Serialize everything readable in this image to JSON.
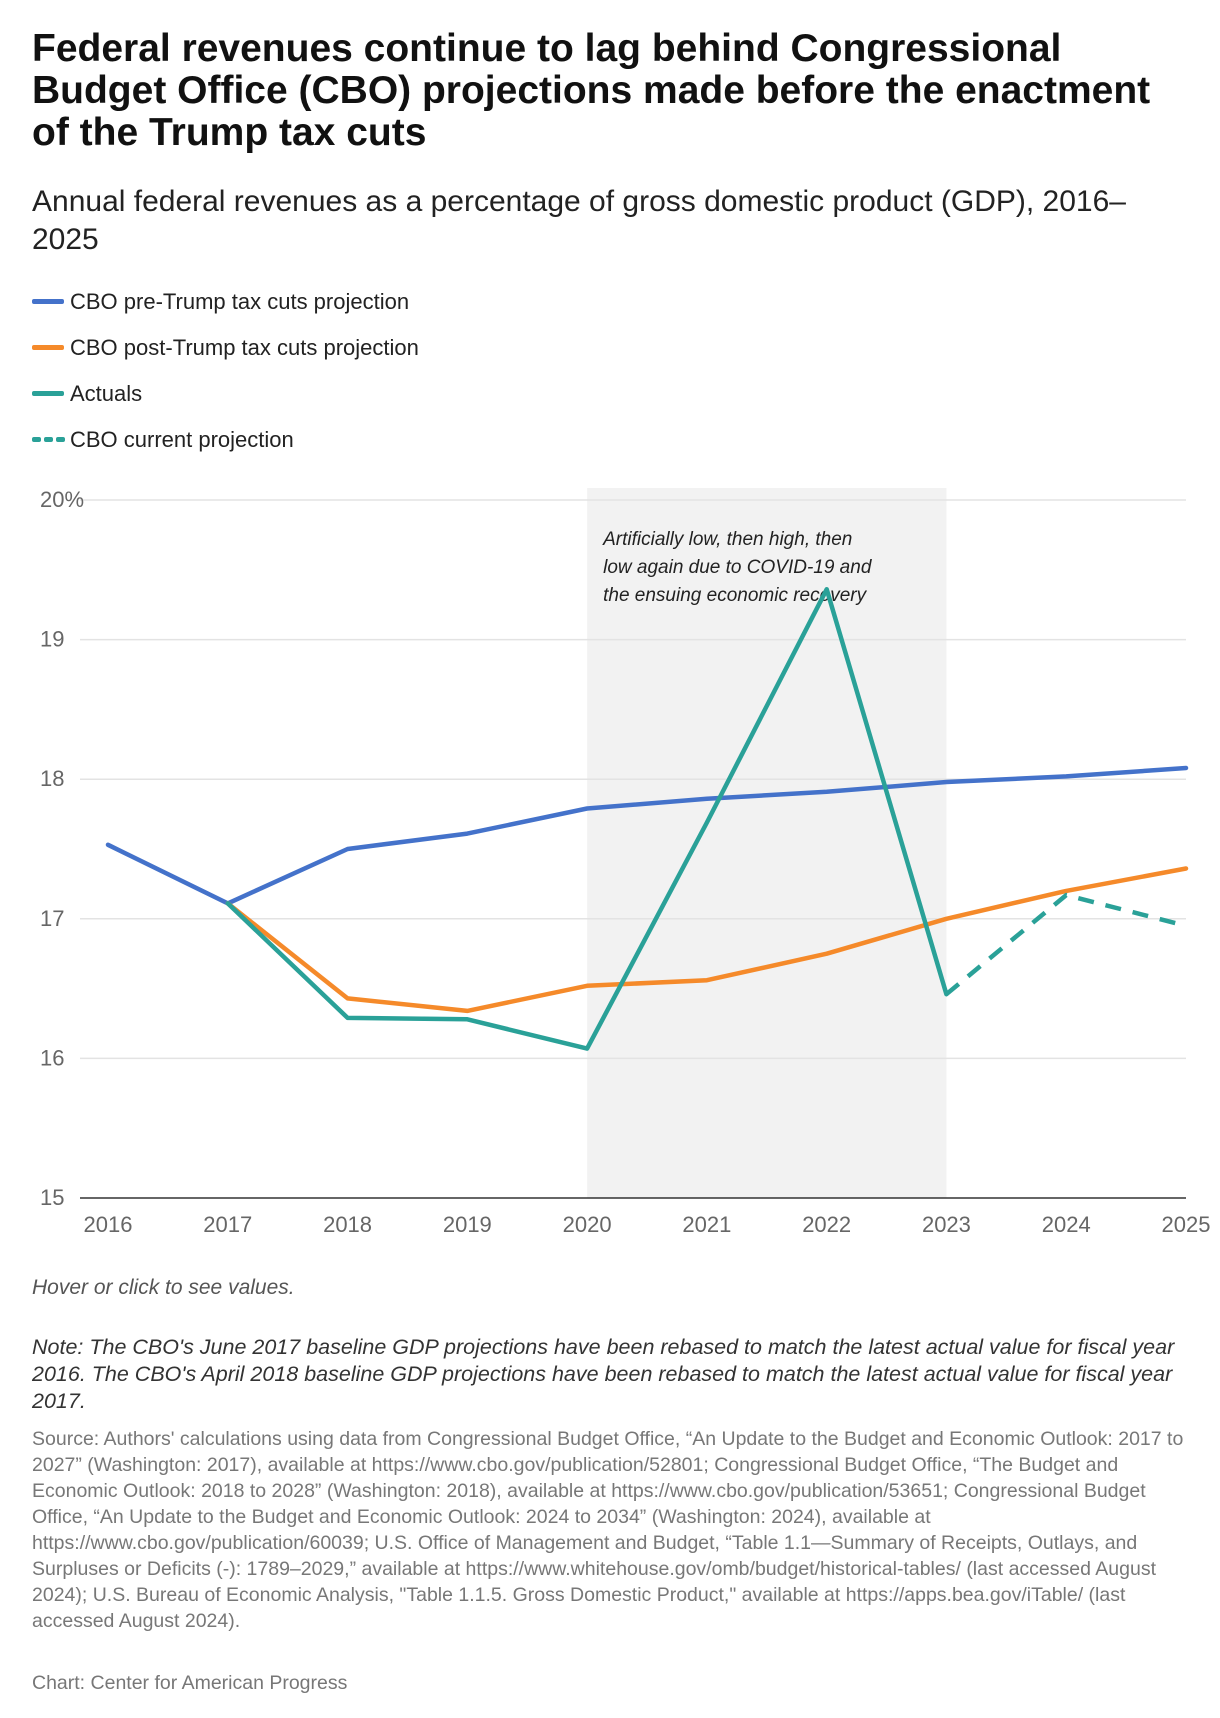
{
  "header": {
    "title": "Federal revenues continue to lag behind Congressional Budget Office (CBO) projections made before the enactment of the Trump tax cuts",
    "subtitle": "Annual federal revenues as a percentage of gross domestic product (GDP), 2016–2025"
  },
  "legend": [
    {
      "label": "CBO pre-Trump tax cuts projection",
      "color": "#4472ca",
      "style": "solid"
    },
    {
      "label": "CBO post-Trump tax cuts projection",
      "color": "#f58a2a",
      "style": "solid"
    },
    {
      "label": "Actuals",
      "color": "#2aa198",
      "style": "solid"
    },
    {
      "label": "CBO current projection",
      "color": "#2aa198",
      "style": "dashed"
    }
  ],
  "chart_data": {
    "type": "line",
    "categories": [
      "2016",
      "2017",
      "2018",
      "2019",
      "2020",
      "2021",
      "2022",
      "2023",
      "2024",
      "2025"
    ],
    "ylim": [
      15,
      20
    ],
    "yticks": [
      15,
      16,
      17,
      18,
      19,
      20
    ],
    "ytick_labels": [
      "15",
      "16",
      "17",
      "18",
      "19",
      "20%"
    ],
    "series": [
      {
        "name": "CBO pre-Trump tax cuts projection",
        "color": "#4472ca",
        "dashed": false,
        "values": [
          17.53,
          17.11,
          17.5,
          17.61,
          17.79,
          17.86,
          17.91,
          17.98,
          18.02,
          18.08
        ]
      },
      {
        "name": "CBO post-Trump tax cuts projection",
        "color": "#f58a2a",
        "dashed": false,
        "values": [
          null,
          17.11,
          16.43,
          16.34,
          16.52,
          16.56,
          16.75,
          17.0,
          17.2,
          17.36
        ]
      },
      {
        "name": "Actuals",
        "color": "#2aa198",
        "dashed": false,
        "values": [
          null,
          17.11,
          16.29,
          16.28,
          16.07,
          17.69,
          19.36,
          16.46,
          null,
          null
        ]
      },
      {
        "name": "CBO current projection",
        "color": "#2aa198",
        "dashed": true,
        "values": [
          null,
          null,
          null,
          null,
          null,
          null,
          null,
          16.46,
          17.17,
          16.95
        ]
      }
    ],
    "shaded_region": {
      "from": "2020",
      "to": "2023",
      "color": "#f2f2f2"
    },
    "annotation": {
      "lines": [
        "Artificially low, then high, then",
        "low again due to COVID-19 and",
        "the ensuing economic recovery"
      ]
    }
  },
  "footer": {
    "hover_hint": "Hover or click to see values.",
    "note": "Note: The CBO's June 2017 baseline GDP projections have been rebased to match the latest actual value for fiscal year 2016. The CBO's April 2018 baseline GDP projections have been rebased to match the latest actual value for fiscal year 2017.",
    "source": "Source: Authors' calculations using data from Congressional Budget Office, “An Update to the Budget and Economic Outlook: 2017 to 2027” (Washington: 2017), available at https://www.cbo.gov/publication/52801; Congressional Budget Office, “The Budget and Economic Outlook: 2018 to 2028” (Washington: 2018), available at https://www.cbo.gov/publication/53651; Congressional Budget Office, “An Update to the Budget and Economic Outlook: 2024 to 2034” (Washington: 2024), available at https://www.cbo.gov/publication/60039; U.S. Office of Management and Budget, “Table 1.1—Summary of Receipts, Outlays, and Surpluses or Deficits (-): 1789–2029,” available at https://www.whitehouse.gov/omb/budget/historical-tables/ (last accessed August 2024); U.S. Bureau of Economic Analysis, \"Table 1.1.5. Gross Domestic Product,\" available at https://apps.bea.gov/iTable/ (last accessed August 2024).",
    "credit": "Chart: Center for American Progress"
  }
}
